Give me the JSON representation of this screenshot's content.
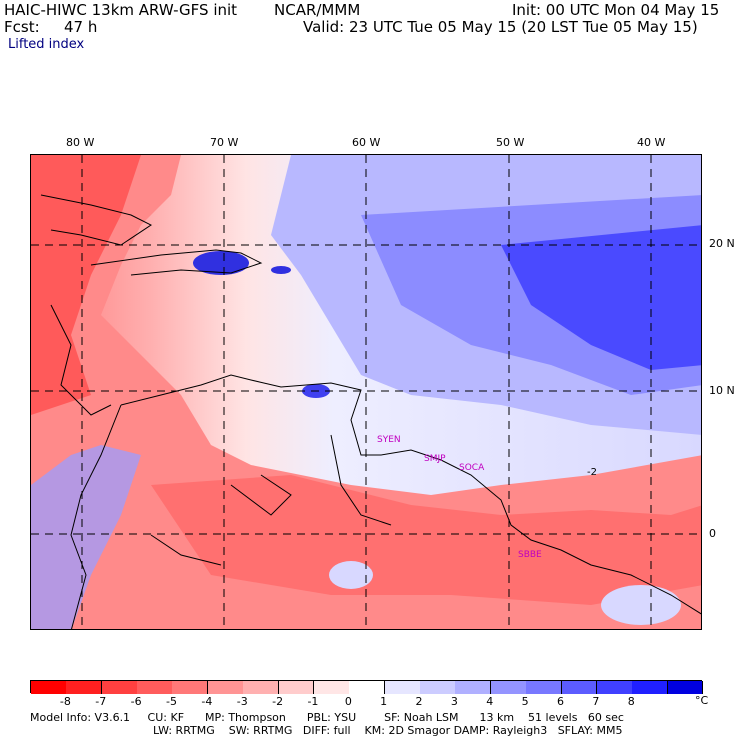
{
  "header": {
    "model": "HAIC-HIWC 13km ARW-GFS init",
    "org": "NCAR/MMM",
    "init": "Init: 00 UTC Mon 04 May 15",
    "fcst_label": "Fcst:",
    "fcst_value": "47 h",
    "valid": "Valid: 23 UTC Tue 05 May 15 (20 LST Tue 05 May 15)",
    "field": "Lifted index"
  },
  "map": {
    "lon_labels": [
      "80 W",
      "70 W",
      "60 W",
      "50 W",
      "40 W"
    ],
    "lat_labels": [
      "20 N",
      "10 N",
      "0"
    ],
    "contour_label": "-2",
    "station_labels": [
      "SYEN",
      "SMJP",
      "SOCA",
      "SBBE"
    ]
  },
  "colorbar": {
    "ticks": [
      "-8",
      "-7",
      "-6",
      "-5",
      "-4",
      "-3",
      "-2",
      "-1",
      "0",
      "1",
      "2",
      "3",
      "4",
      "5",
      "6",
      "7",
      "8"
    ],
    "unit": "°C",
    "colors": [
      "#ff0000",
      "#ff2020",
      "#ff4040",
      "#ff5c5c",
      "#ff7878",
      "#ff9494",
      "#ffb0b0",
      "#ffcccc",
      "#ffe6e6",
      "#ffffff",
      "#e6e6ff",
      "#ccccff",
      "#b0b0ff",
      "#9494ff",
      "#7878ff",
      "#5c5cff",
      "#4040ff",
      "#2020ff",
      "#0000e0"
    ]
  },
  "footer": {
    "line1": "Model Info: V3.6.1     CU: KF      MP: Thompson      PBL: YSU        SF: Noah LSM      13 km    51 levels   60 sec",
    "line2": "LW: RRTMG    SW: RRTMG   DIFF: full    KM: 2D Smagor DAMP: Rayleigh3   SFLAY: MM5"
  }
}
